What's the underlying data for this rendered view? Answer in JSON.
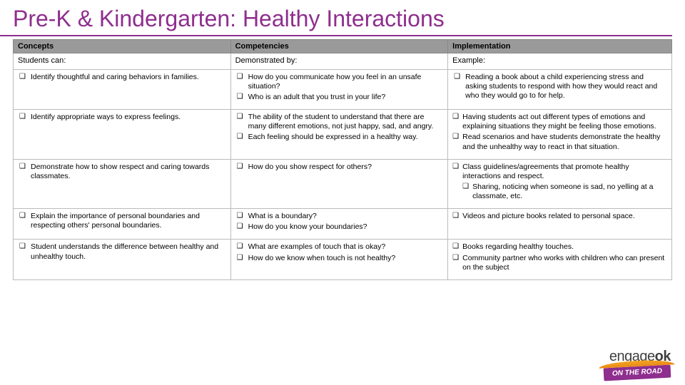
{
  "title": "Pre-K & Kindergarten: Healthy Interactions",
  "colors": {
    "accent": "#8e2e8e",
    "header_bg": "#9a9a9a",
    "border": "#bbbbbb",
    "text": "#000000",
    "logo_orange": "#f5a623"
  },
  "table": {
    "headers": [
      "Concepts",
      "Competencies",
      "Implementation"
    ],
    "subheaders": [
      "Students can:",
      "Demonstrated by:",
      "Example:"
    ],
    "rows": [
      {
        "concepts": [
          "Identify thoughtful and caring behaviors in families."
        ],
        "competencies": [
          "How do you communicate how you feel in an unsafe situation?",
          "Who is an adult that you trust in your life?"
        ],
        "implementation": [
          "Reading a book about a child experiencing stress and asking students to respond with how they would react and who they would go to for help."
        ],
        "impl_tight": false
      },
      {
        "concepts": [
          "Identify appropriate ways to express feelings."
        ],
        "competencies": [
          "The ability of the student to understand that there are many different emotions, not just happy, sad, and angry.",
          "Each feeling should be expressed in a healthy way."
        ],
        "implementation": [
          "Having students act out different types of emotions and explaining situations they might be feeling those emotions.",
          "Read scenarios and have students demonstrate the healthy and the unhealthy way to react in that situation."
        ],
        "impl_tight": true
      },
      {
        "concepts": [
          "Demonstrate how to show respect and caring towards classmates."
        ],
        "competencies": [
          "How do you show respect for others?"
        ],
        "implementation": [
          "Class guidelines/agreements that promote healthy interactions and respect."
        ],
        "implementation_nested": [
          "Sharing, noticing when someone is sad, no yelling at a classmate, etc."
        ],
        "impl_tight": true
      },
      {
        "concepts": [
          "Explain the importance of personal boundaries and respecting others' personal boundaries."
        ],
        "competencies": [
          "What is a boundary?",
          "How do you know your boundaries?"
        ],
        "implementation": [
          "Videos and picture books related to personal space."
        ],
        "impl_tight": true
      },
      {
        "concepts": [
          "Student understands the difference between healthy and unhealthy touch."
        ],
        "competencies": [
          "What are examples of touch that is okay?",
          "How do we know when touch is not healthy?"
        ],
        "implementation": [
          "Books regarding healthy touches.",
          "Community partner who works with children who can present on the subject"
        ],
        "impl_tight": true
      }
    ]
  },
  "logo": {
    "text_light": "engage",
    "text_bold": "ok",
    "badge": "ON THE ROAD"
  }
}
